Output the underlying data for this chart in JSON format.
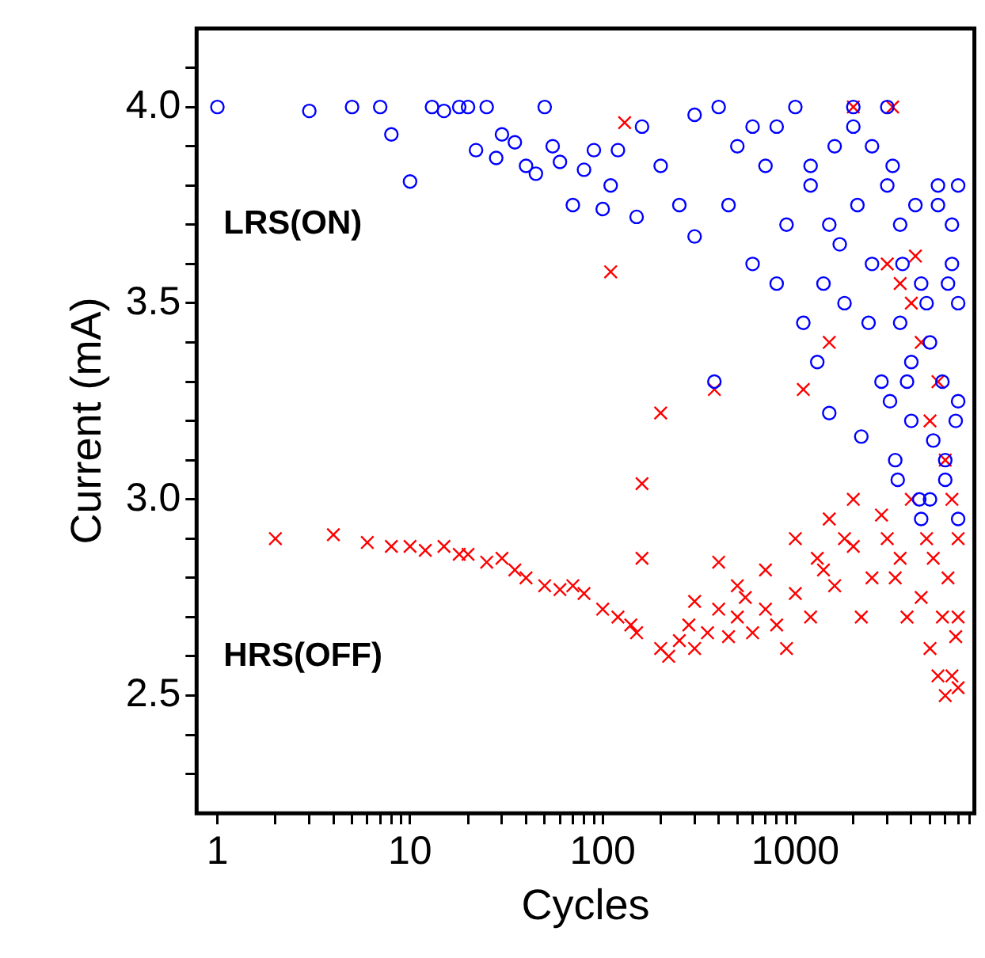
{
  "chart_data": {
    "type": "scatter",
    "xlabel": "Cycles",
    "ylabel": "Current (mA)",
    "log": "x",
    "grid": false,
    "legend": false,
    "xlim": [
      0.78,
      8500
    ],
    "ylim": [
      2.2,
      4.2
    ],
    "xticks": [
      {
        "value": 1,
        "label": "1"
      },
      {
        "value": 2,
        "label": null
      },
      {
        "value": 3,
        "label": null
      },
      {
        "value": 4,
        "label": null
      },
      {
        "value": 5,
        "label": null
      },
      {
        "value": 6,
        "label": null
      },
      {
        "value": 7,
        "label": null
      },
      {
        "value": 8,
        "label": null
      },
      {
        "value": 9,
        "label": null
      },
      10,
      {
        "value": 20,
        "label": null
      },
      {
        "value": 30,
        "label": null
      },
      {
        "value": 40,
        "label": null
      },
      {
        "value": 50,
        "label": null
      },
      {
        "value": 60,
        "label": null
      },
      {
        "value": 70,
        "label": null
      },
      {
        "value": 80,
        "label": null
      },
      {
        "value": 90,
        "label": null
      },
      100,
      {
        "value": 200,
        "label": null
      },
      {
        "value": 300,
        "label": null
      },
      {
        "value": 400,
        "label": null
      },
      {
        "value": 500,
        "label": null
      },
      {
        "value": 600,
        "label": null
      },
      {
        "value": 700,
        "label": null
      },
      {
        "value": 800,
        "label": null
      },
      {
        "value": 900,
        "label": null
      },
      1000,
      {
        "value": 2000,
        "label": null
      },
      {
        "value": 3000,
        "label": null
      },
      {
        "value": 4000,
        "label": null
      },
      {
        "value": 5000,
        "label": null
      },
      {
        "value": 6000,
        "label": null
      },
      {
        "value": 7000,
        "label": null
      },
      {
        "value": 8000,
        "label": null
      }
    ],
    "yticks": [
      {
        "value": 2.3,
        "label": null
      },
      {
        "value": 2.4,
        "label": null
      },
      2.5,
      {
        "value": 2.6,
        "label": null
      },
      {
        "value": 2.7,
        "label": null
      },
      {
        "value": 2.8,
        "label": null
      },
      {
        "value": 2.9,
        "label": null
      },
      {
        "value": 3,
        "label": "3.0"
      },
      {
        "value": 3.1,
        "label": null
      },
      {
        "value": 3.2,
        "label": null
      },
      {
        "value": 3.3,
        "label": null
      },
      {
        "value": 3.4,
        "label": null
      },
      3.5,
      {
        "value": 3.6,
        "label": null
      },
      {
        "value": 3.7,
        "label": null
      },
      {
        "value": 3.8,
        "label": null
      },
      {
        "value": 3.9,
        "label": null
      },
      {
        "value": 4,
        "label": "4.0"
      },
      {
        "value": 4.1,
        "label": null
      }
    ],
    "series": [
      {
        "name": "LRS(ON)",
        "color": "#0000ff",
        "marker": "circle",
        "x": [
          1,
          3,
          5,
          7,
          8,
          10,
          13,
          15,
          18,
          20,
          22,
          25,
          28,
          30,
          35,
          40,
          45,
          50,
          55,
          60,
          70,
          80,
          90,
          100,
          110,
          120,
          150,
          160,
          200,
          250,
          300,
          380,
          400,
          450,
          500,
          600,
          700,
          800,
          900,
          1000,
          1100,
          1200,
          1300,
          1400,
          1500,
          1600,
          1700,
          1800,
          2000,
          2100,
          2200,
          2400,
          2500,
          2800,
          3000,
          3100,
          3200,
          3300,
          3400,
          3500,
          3600,
          3800,
          4000,
          4200,
          4400,
          4500,
          4800,
          5000,
          5200,
          5500,
          5800,
          6000,
          6200,
          6500,
          6800,
          7000,
          7000,
          7000,
          7000,
          6500,
          6000,
          5500,
          5000,
          4500,
          4000,
          3500,
          3000,
          2500,
          2000,
          1500,
          1200,
          800,
          600,
          300
        ],
        "values": [
          4.0,
          3.99,
          4.0,
          4.0,
          3.93,
          3.81,
          4.0,
          3.99,
          4.0,
          4.0,
          3.89,
          4.0,
          3.87,
          3.93,
          3.91,
          3.85,
          3.83,
          4.0,
          3.9,
          3.86,
          3.75,
          3.84,
          3.89,
          3.74,
          3.8,
          3.89,
          3.72,
          3.95,
          3.85,
          3.75,
          3.67,
          3.3,
          4.0,
          3.75,
          3.9,
          3.6,
          3.85,
          3.55,
          3.7,
          4.0,
          3.45,
          3.8,
          3.35,
          3.55,
          3.22,
          3.9,
          3.65,
          3.5,
          4.0,
          3.75,
          3.16,
          3.45,
          3.6,
          3.3,
          4.0,
          3.25,
          3.85,
          3.1,
          3.05,
          3.45,
          3.6,
          3.3,
          3.2,
          3.75,
          3.0,
          2.95,
          3.5,
          3.4,
          3.15,
          3.75,
          3.3,
          3.1,
          3.55,
          3.6,
          3.2,
          2.95,
          3.8,
          3.5,
          3.25,
          3.7,
          3.05,
          3.8,
          3.0,
          3.55,
          3.35,
          3.7,
          3.8,
          3.9,
          3.95,
          3.7,
          3.85,
          3.95,
          3.95,
          3.98
        ]
      },
      {
        "name": "HRS(OFF)",
        "color": "#ff0000",
        "marker": "cross",
        "x": [
          2,
          4,
          6,
          8,
          10,
          12,
          15,
          18,
          20,
          25,
          30,
          35,
          40,
          50,
          60,
          70,
          80,
          100,
          110,
          120,
          130,
          140,
          150,
          160,
          160,
          200,
          200,
          220,
          250,
          280,
          300,
          350,
          380,
          400,
          400,
          450,
          500,
          550,
          600,
          700,
          800,
          900,
          1000,
          1100,
          1200,
          1300,
          1400,
          1500,
          1600,
          1800,
          2000,
          2000,
          2200,
          2500,
          2800,
          3000,
          3200,
          3300,
          3500,
          3500,
          3800,
          4000,
          4200,
          4500,
          4800,
          5000,
          5200,
          5500,
          5800,
          6000,
          6200,
          6500,
          6800,
          7000,
          7000,
          7000,
          6500,
          6000,
          5500,
          5000,
          4500,
          4000,
          3000,
          2000,
          1500,
          1000,
          700,
          500,
          300
        ],
        "values": [
          2.9,
          2.91,
          2.89,
          2.88,
          2.88,
          2.87,
          2.88,
          2.86,
          2.86,
          2.84,
          2.85,
          2.82,
          2.8,
          2.78,
          2.77,
          2.78,
          2.76,
          2.72,
          3.58,
          2.7,
          3.96,
          2.68,
          2.66,
          3.04,
          2.85,
          2.62,
          3.22,
          2.6,
          2.64,
          2.68,
          2.62,
          2.66,
          3.28,
          2.72,
          2.84,
          2.65,
          2.7,
          2.75,
          2.66,
          2.72,
          2.68,
          2.62,
          2.76,
          3.28,
          2.7,
          2.85,
          2.82,
          3.4,
          2.78,
          2.9,
          2.88,
          4.0,
          2.7,
          2.8,
          2.96,
          2.9,
          4.0,
          2.8,
          2.85,
          3.55,
          2.7,
          3.0,
          3.62,
          2.75,
          2.9,
          2.62,
          2.85,
          2.55,
          2.7,
          2.5,
          2.8,
          2.55,
          2.65,
          2.52,
          2.7,
          2.9,
          3.0,
          3.1,
          3.3,
          3.2,
          3.4,
          3.5,
          3.6,
          3.0,
          2.95,
          2.9,
          2.82,
          2.78,
          2.74
        ]
      }
    ]
  }
}
